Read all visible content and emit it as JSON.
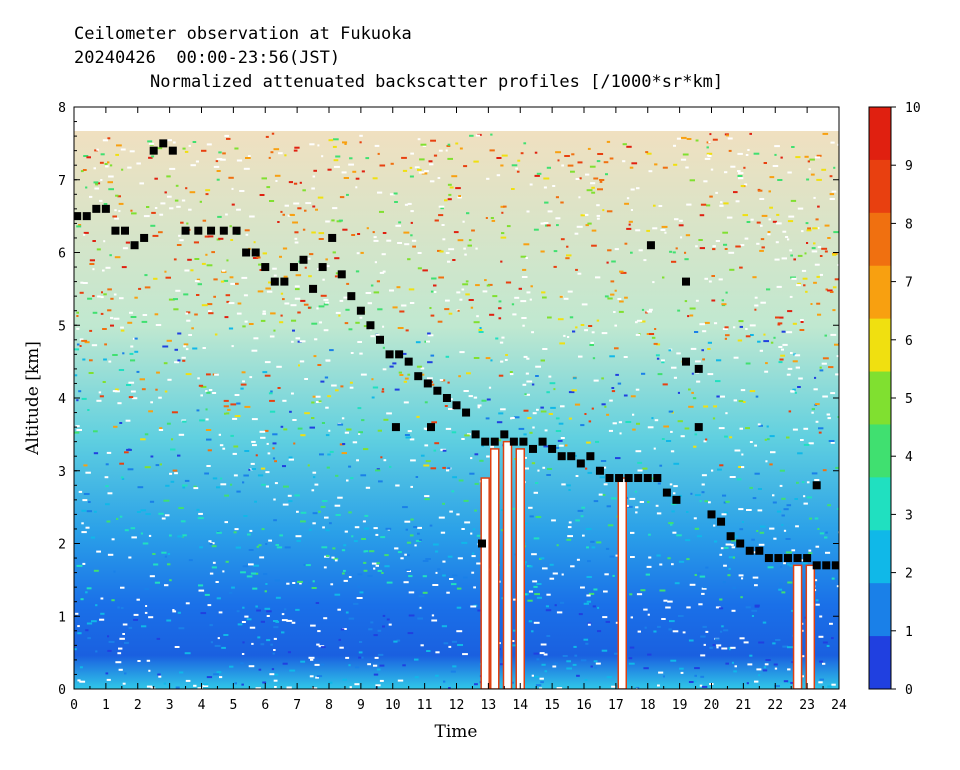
{
  "header": {
    "line1": "Ceilometer observation at Fukuoka",
    "line2": "20240426  00:00-23:56(JST)",
    "line3": "Normalized attenuated backscatter profiles [/1000*sr*km]"
  },
  "chart_data": {
    "type": "heatmap",
    "xlabel": "Time",
    "ylabel": "Altitude [km]",
    "xlim": [
      0,
      24
    ],
    "ylim": [
      0,
      8
    ],
    "x_ticks": [
      "0",
      "1",
      "2",
      "3",
      "4",
      "5",
      "6",
      "7",
      "8",
      "9",
      "10",
      "11",
      "12",
      "13",
      "14",
      "15",
      "16",
      "17",
      "18",
      "19",
      "20",
      "21",
      "22",
      "23",
      "24"
    ],
    "y_ticks": [
      "0",
      "1",
      "2",
      "3",
      "4",
      "5",
      "6",
      "7",
      "8"
    ],
    "colorbar": {
      "min": 0,
      "max": 10,
      "ticks": [
        "0",
        "1",
        "2",
        "3",
        "4",
        "5",
        "6",
        "7",
        "8",
        "9",
        "10"
      ],
      "colors": [
        "#2040e0",
        "#1a80e8",
        "#10b8e8",
        "#20e0c0",
        "#40e070",
        "#80e030",
        "#f0e010",
        "#f8a010",
        "#f07010",
        "#e84010",
        "#e02010"
      ]
    },
    "cloud_base_points": [
      [
        0.1,
        6.5
      ],
      [
        0.4,
        6.5
      ],
      [
        0.7,
        6.6
      ],
      [
        1.0,
        6.6
      ],
      [
        1.3,
        6.3
      ],
      [
        1.6,
        6.3
      ],
      [
        1.9,
        6.1
      ],
      [
        2.2,
        6.2
      ],
      [
        2.5,
        7.4
      ],
      [
        2.8,
        7.5
      ],
      [
        3.1,
        7.4
      ],
      [
        3.5,
        6.3
      ],
      [
        3.9,
        6.3
      ],
      [
        4.3,
        6.3
      ],
      [
        4.7,
        6.3
      ],
      [
        5.1,
        6.3
      ],
      [
        5.4,
        6.0
      ],
      [
        5.7,
        6.0
      ],
      [
        6.0,
        5.8
      ],
      [
        6.3,
        5.6
      ],
      [
        6.6,
        5.6
      ],
      [
        6.9,
        5.8
      ],
      [
        7.2,
        5.9
      ],
      [
        7.5,
        5.5
      ],
      [
        7.8,
        5.8
      ],
      [
        8.1,
        6.2
      ],
      [
        8.4,
        5.7
      ],
      [
        8.7,
        5.4
      ],
      [
        9.0,
        5.2
      ],
      [
        9.3,
        5.0
      ],
      [
        9.6,
        4.8
      ],
      [
        9.9,
        4.6
      ],
      [
        10.2,
        4.6
      ],
      [
        10.5,
        4.5
      ],
      [
        10.8,
        4.3
      ],
      [
        11.1,
        4.2
      ],
      [
        11.4,
        4.1
      ],
      [
        11.7,
        4.0
      ],
      [
        12.0,
        3.9
      ],
      [
        12.3,
        3.8
      ],
      [
        12.6,
        3.5
      ],
      [
        12.9,
        3.4
      ],
      [
        13.2,
        3.4
      ],
      [
        13.5,
        3.5
      ],
      [
        13.8,
        3.4
      ],
      [
        14.1,
        3.4
      ],
      [
        14.4,
        3.3
      ],
      [
        14.7,
        3.4
      ],
      [
        15.0,
        3.3
      ],
      [
        15.3,
        3.2
      ],
      [
        15.6,
        3.2
      ],
      [
        15.9,
        3.1
      ],
      [
        16.2,
        3.2
      ],
      [
        16.5,
        3.0
      ],
      [
        16.8,
        2.9
      ],
      [
        17.1,
        2.9
      ],
      [
        17.4,
        2.9
      ],
      [
        17.7,
        2.9
      ],
      [
        18.0,
        2.9
      ],
      [
        18.3,
        2.9
      ],
      [
        18.6,
        2.7
      ],
      [
        18.9,
        2.6
      ],
      [
        19.2,
        4.5
      ],
      [
        19.6,
        4.4
      ],
      [
        19.2,
        5.6
      ],
      [
        19.6,
        3.6
      ],
      [
        20.0,
        2.4
      ],
      [
        20.3,
        2.3
      ],
      [
        20.6,
        2.1
      ],
      [
        20.9,
        2.0
      ],
      [
        21.2,
        1.9
      ],
      [
        21.5,
        1.9
      ],
      [
        21.8,
        1.8
      ],
      [
        22.1,
        1.8
      ],
      [
        22.4,
        1.8
      ],
      [
        22.7,
        1.8
      ],
      [
        23.0,
        1.8
      ],
      [
        23.3,
        1.7
      ],
      [
        23.6,
        1.7
      ],
      [
        23.9,
        1.7
      ],
      [
        18.1,
        6.1
      ],
      [
        23.3,
        2.8
      ],
      [
        12.8,
        2.0
      ],
      [
        10.1,
        3.6
      ],
      [
        11.2,
        3.6
      ]
    ]
  }
}
